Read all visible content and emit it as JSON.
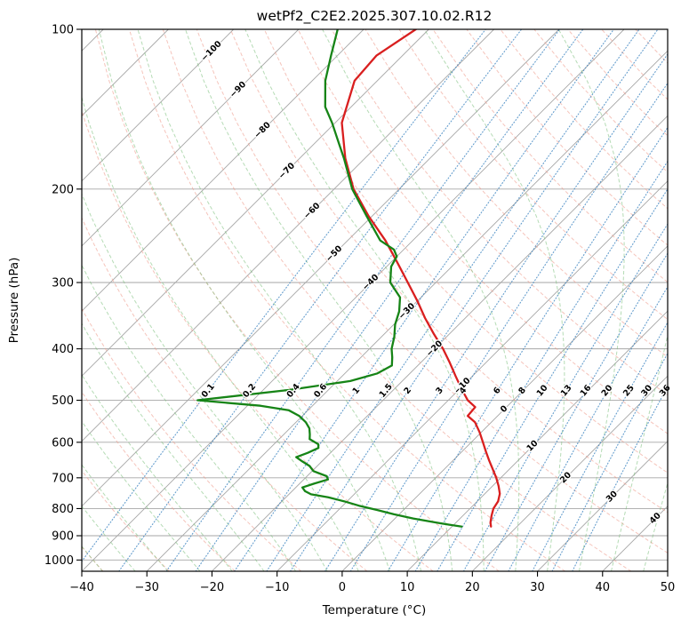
{
  "title": "wetPf2_C2E2.2025.307.10.02.R12",
  "axes": {
    "x_label": "Temperature (°C)",
    "y_label": "Pressure (hPa)"
  },
  "chart_data": {
    "type": "line",
    "diagram": "skew-t-log-p",
    "pressure_range": [
      100,
      1050
    ],
    "temp_range": [
      -40,
      50
    ],
    "skew_deg": 45,
    "x_ticks": [
      -40,
      -30,
      -20,
      -10,
      0,
      10,
      20,
      30,
      40,
      50
    ],
    "y_ticks": [
      100,
      200,
      300,
      400,
      500,
      600,
      700,
      800,
      900,
      1000
    ],
    "isotherms": {
      "start": -120,
      "end": 50,
      "step": 10
    },
    "isotherm_labels": [
      {
        "t": -100,
        "p": 110
      },
      {
        "t": -90,
        "p": 130
      },
      {
        "t": -80,
        "p": 155
      },
      {
        "t": -70,
        "p": 185
      },
      {
        "t": -60,
        "p": 220
      },
      {
        "t": -50,
        "p": 265
      },
      {
        "t": -40,
        "p": 300
      },
      {
        "t": -30,
        "p": 340
      },
      {
        "t": -20,
        "p": 400
      },
      {
        "t": -10,
        "p": 470
      },
      {
        "t": 0,
        "p": 520
      },
      {
        "t": 10,
        "p": 610
      },
      {
        "t": 20,
        "p": 700
      },
      {
        "t": 30,
        "p": 760
      },
      {
        "t": 40,
        "p": 835
      }
    ],
    "mixing_ratio_values": [
      0.1,
      0.2,
      0.4,
      0.6,
      1,
      1.5,
      2,
      3,
      4,
      6,
      8,
      10,
      13,
      16,
      20,
      25,
      30,
      36
    ],
    "mixing_ratio_label_pressure": 480,
    "dry_adiabats": {
      "start": -60,
      "end": 190,
      "step": 10
    },
    "moist_adiabats": {
      "start": -40,
      "end": 45,
      "step": 5
    },
    "colors": {
      "grid": "#a6a6a6",
      "dry_adiabat": "#ee9c8d",
      "moist_adiabat": "#79bd79",
      "mixing_ratio": "#3d85c0",
      "mixing_label": "#1f77b4",
      "isotherm_label_negative": "#1f77b4",
      "isotherm_label_zero": "#808080",
      "isotherm_label_positive": "#b22222",
      "temperature_line": "#d91f1f",
      "dewpoint_line": "#168416",
      "axis": "#000000"
    },
    "series": [
      {
        "name": "temperature",
        "color": "#d91f1f",
        "points": [
          [
            100,
            -72
          ],
          [
            112,
            -74
          ],
          [
            125,
            -73.5
          ],
          [
            150,
            -69
          ],
          [
            175,
            -63
          ],
          [
            200,
            -57
          ],
          [
            225,
            -50.5
          ],
          [
            250,
            -44.2
          ],
          [
            275,
            -39
          ],
          [
            300,
            -34.3
          ],
          [
            325,
            -30
          ],
          [
            350,
            -26.2
          ],
          [
            375,
            -22.4
          ],
          [
            400,
            -18.7
          ],
          [
            425,
            -15.5
          ],
          [
            450,
            -12.6
          ],
          [
            475,
            -9.8
          ],
          [
            500,
            -7
          ],
          [
            515,
            -4.8
          ],
          [
            535,
            -4.6
          ],
          [
            550,
            -2.5
          ],
          [
            575,
            -0.2
          ],
          [
            600,
            1.8
          ],
          [
            625,
            3.7
          ],
          [
            650,
            5.6
          ],
          [
            675,
            7.5
          ],
          [
            700,
            9.3
          ],
          [
            725,
            10.9
          ],
          [
            750,
            12.3
          ],
          [
            775,
            13.2
          ],
          [
            800,
            13.6
          ],
          [
            825,
            14.4
          ],
          [
            850,
            15.3
          ],
          [
            865,
            16
          ]
        ]
      },
      {
        "name": "dewpoint",
        "color": "#168416",
        "points": [
          [
            100,
            -84
          ],
          [
            112,
            -81
          ],
          [
            125,
            -78
          ],
          [
            140,
            -74
          ],
          [
            150,
            -70.5
          ],
          [
            165,
            -66
          ],
          [
            175,
            -63.2
          ],
          [
            200,
            -57.2
          ],
          [
            225,
            -50.8
          ],
          [
            250,
            -45
          ],
          [
            260,
            -41.5
          ],
          [
            268,
            -40
          ],
          [
            280,
            -39.3
          ],
          [
            300,
            -37
          ],
          [
            320,
            -33.2
          ],
          [
            340,
            -31.2
          ],
          [
            360,
            -29.8
          ],
          [
            380,
            -28
          ],
          [
            400,
            -26.6
          ],
          [
            415,
            -25.2
          ],
          [
            430,
            -24
          ],
          [
            445,
            -25
          ],
          [
            460,
            -28
          ],
          [
            478,
            -36
          ],
          [
            500,
            -48.5
          ],
          [
            512,
            -38
          ],
          [
            522,
            -33
          ],
          [
            535,
            -30.5
          ],
          [
            550,
            -28.5
          ],
          [
            565,
            -27
          ],
          [
            580,
            -26
          ],
          [
            592,
            -25.3
          ],
          [
            605,
            -23.2
          ],
          [
            615,
            -22.6
          ],
          [
            628,
            -23.5
          ],
          [
            640,
            -24.6
          ],
          [
            652,
            -23
          ],
          [
            665,
            -21.2
          ],
          [
            680,
            -19.8
          ],
          [
            695,
            -17
          ],
          [
            705,
            -16.3
          ],
          [
            718,
            -17.8
          ],
          [
            730,
            -19
          ],
          [
            742,
            -18
          ],
          [
            752,
            -16.6
          ],
          [
            762,
            -13.5
          ],
          [
            775,
            -10.5
          ],
          [
            790,
            -7.5
          ],
          [
            805,
            -4
          ],
          [
            820,
            -0.8
          ],
          [
            835,
            2.8
          ],
          [
            850,
            7
          ],
          [
            858,
            9.3
          ],
          [
            865,
            11.5
          ]
        ]
      }
    ]
  }
}
